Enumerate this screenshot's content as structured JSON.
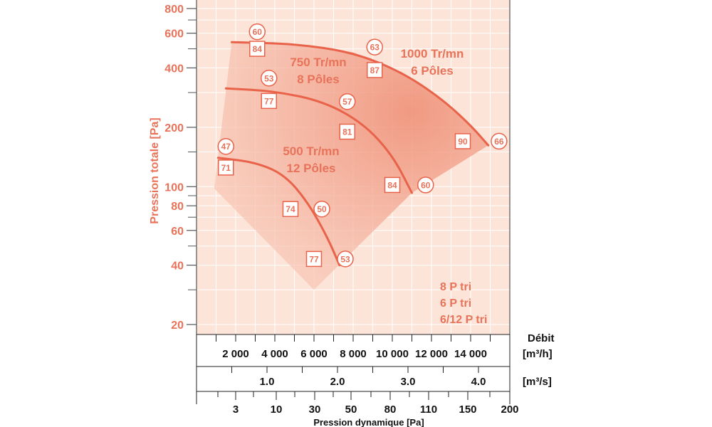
{
  "chart_data": {
    "type": "line",
    "title": "",
    "ylabel": "Pression totale [Pa]",
    "yscale": "log",
    "ylim": [
      20,
      800
    ],
    "yticks": [
      20,
      40,
      60,
      80,
      100,
      200,
      400,
      600,
      800
    ],
    "xlabel": "Débit",
    "xunit_primary": "[m³/h]",
    "xunit_secondary": "[m³/s]",
    "xlim_m3h": [
      0,
      16000
    ],
    "x_m3h_ticks": [
      "2 000",
      "4 000",
      "6 000",
      "8 000",
      "10 000",
      "12 000",
      "14 000"
    ],
    "x_m3s_ticks": [
      "1.0",
      "2.0",
      "3.0",
      "4.0"
    ],
    "pression_dynamique_label": "Pression dynamique [Pa]",
    "pression_dynamique_ticks": [
      "3",
      "10",
      "30",
      "50",
      "80",
      "110",
      "150",
      "200"
    ],
    "series": [
      {
        "name": "1000 Tr/mn",
        "line1": "1000 Tr/mn",
        "line2": "6 Pôles",
        "points": [
          [
            1800,
            540
          ],
          [
            5000,
            530
          ],
          [
            8000,
            480
          ],
          [
            10500,
            380
          ],
          [
            12500,
            280
          ],
          [
            14000,
            205
          ],
          [
            14900,
            162
          ]
        ],
        "markers": [
          {
            "shape": "circle",
            "text": "60",
            "x": 3100,
            "y": 610
          },
          {
            "shape": "square",
            "text": "84",
            "x": 3100,
            "y": 500
          },
          {
            "shape": "circle",
            "text": "63",
            "x": 9100,
            "y": 510
          },
          {
            "shape": "square",
            "text": "87",
            "x": 9100,
            "y": 390
          },
          {
            "shape": "square",
            "text": "90",
            "x": 13600,
            "y": 170
          },
          {
            "shape": "circle",
            "text": "66",
            "x": 15450,
            "y": 170
          }
        ]
      },
      {
        "name": "750 Tr/mn",
        "line1": "750 Tr/mn",
        "line2": "8 Pôles",
        "points": [
          [
            1500,
            315
          ],
          [
            4000,
            305
          ],
          [
            6500,
            270
          ],
          [
            8500,
            210
          ],
          [
            10000,
            145
          ],
          [
            11000,
            93
          ]
        ],
        "markers": [
          {
            "shape": "circle",
            "text": "53",
            "x": 3700,
            "y": 355
          },
          {
            "shape": "square",
            "text": "77",
            "x": 3700,
            "y": 272
          },
          {
            "shape": "circle",
            "text": "57",
            "x": 7700,
            "y": 270
          },
          {
            "shape": "square",
            "text": "81",
            "x": 7700,
            "y": 190
          },
          {
            "shape": "square",
            "text": "84",
            "x": 10000,
            "y": 102
          },
          {
            "shape": "circle",
            "text": "60",
            "x": 11700,
            "y": 102
          }
        ]
      },
      {
        "name": "500 Tr/mn",
        "line1": "500 Tr/mn",
        "line2": "12 Pôles",
        "points": [
          [
            1100,
            140
          ],
          [
            3000,
            133
          ],
          [
            4500,
            115
          ],
          [
            5700,
            83
          ],
          [
            6700,
            55
          ],
          [
            7300,
            40
          ]
        ],
        "markers": [
          {
            "shape": "circle",
            "text": "47",
            "x": 1500,
            "y": 160
          },
          {
            "shape": "square",
            "text": "71",
            "x": 1500,
            "y": 125
          },
          {
            "shape": "square",
            "text": "74",
            "x": 4800,
            "y": 77
          },
          {
            "shape": "circle",
            "text": "50",
            "x": 6400,
            "y": 77
          },
          {
            "shape": "square",
            "text": "77",
            "x": 6000,
            "y": 43
          },
          {
            "shape": "circle",
            "text": "53",
            "x": 7600,
            "y": 43
          }
        ]
      }
    ],
    "legend": [
      "8 P tri",
      "6 P tri",
      "6/12 P tri"
    ]
  }
}
